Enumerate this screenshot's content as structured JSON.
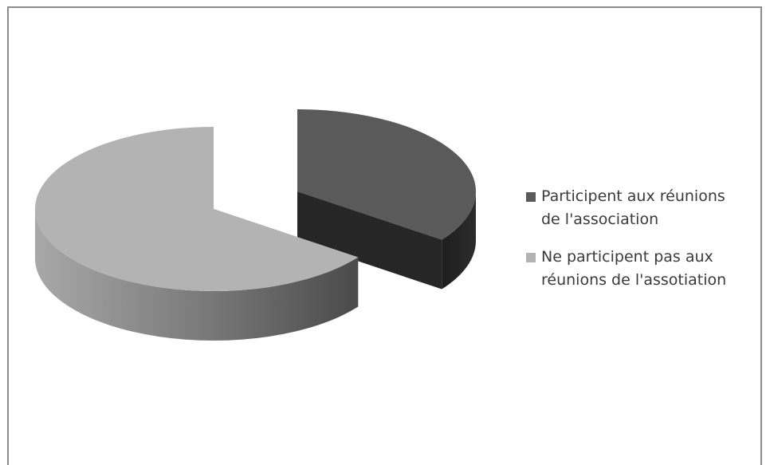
{
  "chart_data": {
    "type": "pie",
    "title": "",
    "view": "3d-exploded",
    "legend_position": "right",
    "slices": [
      {
        "label": "Participent aux réunions\nde l'association",
        "value": 35,
        "color": "#5a5a5a",
        "side_color": "#2a2a2a"
      },
      {
        "label": "Ne participent pas aux\nréunions de l'assotiation",
        "value": 65,
        "color": "#b3b3b3",
        "side_color": "#7a7a7a"
      }
    ]
  }
}
